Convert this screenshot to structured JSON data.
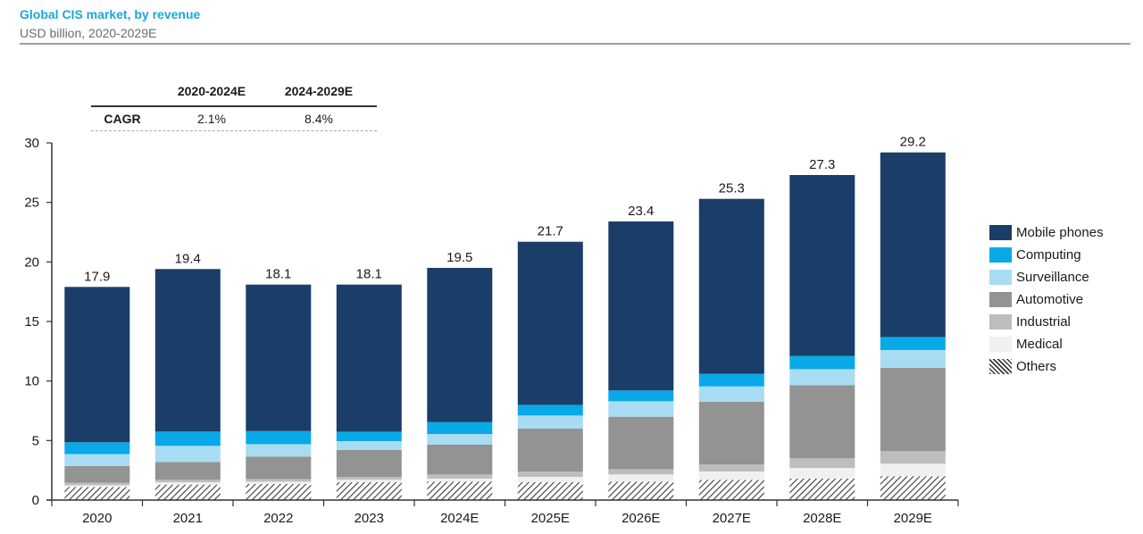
{
  "header": {
    "title": "Global CIS market, by revenue",
    "subtitle": "USD billion, 2020-2029E"
  },
  "cagr_table": {
    "periods": [
      "2020-2024E",
      "2024-2029E"
    ],
    "row_label": "CAGR",
    "values": [
      "2.1%",
      "8.4%"
    ]
  },
  "chart_data": {
    "type": "bar",
    "stacked": true,
    "title": "Global CIS market, by revenue",
    "subtitle": "USD billion, 2020-2029E",
    "xlabel": "",
    "ylabel": "",
    "ylim": [
      0,
      30
    ],
    "yticks": [
      0,
      5,
      10,
      15,
      20,
      25,
      30
    ],
    "grid": false,
    "legend_position": "right",
    "categories": [
      "2020",
      "2021",
      "2022",
      "2023",
      "2024E",
      "2025E",
      "2026E",
      "2027E",
      "2028E",
      "2029E"
    ],
    "totals": [
      17.9,
      19.4,
      18.1,
      18.1,
      19.5,
      21.7,
      23.4,
      25.3,
      27.3,
      29.2
    ],
    "total_labels": [
      "17.9",
      "19.4",
      "18.1",
      "18.1",
      "19.5",
      "21.7",
      "23.4",
      "25.3",
      "27.3",
      "29.2"
    ],
    "series": [
      {
        "name": "Others",
        "color": "hatch",
        "values": [
          1.1,
          1.3,
          1.35,
          1.5,
          1.55,
          1.5,
          1.55,
          1.7,
          1.8,
          2.0
        ]
      },
      {
        "name": "Medical",
        "color": "#f0f0f0",
        "values": [
          0.15,
          0.2,
          0.2,
          0.2,
          0.25,
          0.45,
          0.6,
          0.7,
          0.9,
          1.05
        ]
      },
      {
        "name": "Industrial",
        "color": "#bdbdbd",
        "values": [
          0.2,
          0.2,
          0.2,
          0.25,
          0.35,
          0.45,
          0.45,
          0.6,
          0.8,
          1.05
        ]
      },
      {
        "name": "Automotive",
        "color": "#939393",
        "values": [
          1.4,
          1.5,
          1.9,
          2.25,
          2.5,
          3.6,
          4.4,
          5.25,
          6.15,
          7.0
        ]
      },
      {
        "name": "Surveillance",
        "color": "#a8dcf2",
        "values": [
          1.0,
          1.35,
          1.05,
          0.75,
          0.9,
          1.1,
          1.3,
          1.3,
          1.35,
          1.5
        ]
      },
      {
        "name": "Computing",
        "color": "#09a9e8",
        "values": [
          1.0,
          1.2,
          1.1,
          0.8,
          1.0,
          0.9,
          0.9,
          1.05,
          1.1,
          1.1
        ]
      },
      {
        "name": "Mobile phones",
        "color": "#1a3e67",
        "values": [
          13.05,
          13.65,
          12.3,
          12.35,
          12.95,
          13.7,
          14.2,
          14.7,
          15.2,
          15.5
        ]
      }
    ]
  },
  "legend": [
    {
      "name": "Mobile phones",
      "color": "#1a3e67"
    },
    {
      "name": "Computing",
      "color": "#09a9e8"
    },
    {
      "name": "Surveillance",
      "color": "#a8dcf2"
    },
    {
      "name": "Automotive",
      "color": "#939393"
    },
    {
      "name": "Industrial",
      "color": "#bdbdbd"
    },
    {
      "name": "Medical",
      "color": "#f0f0f0"
    },
    {
      "name": "Others",
      "color": "hatch"
    }
  ]
}
